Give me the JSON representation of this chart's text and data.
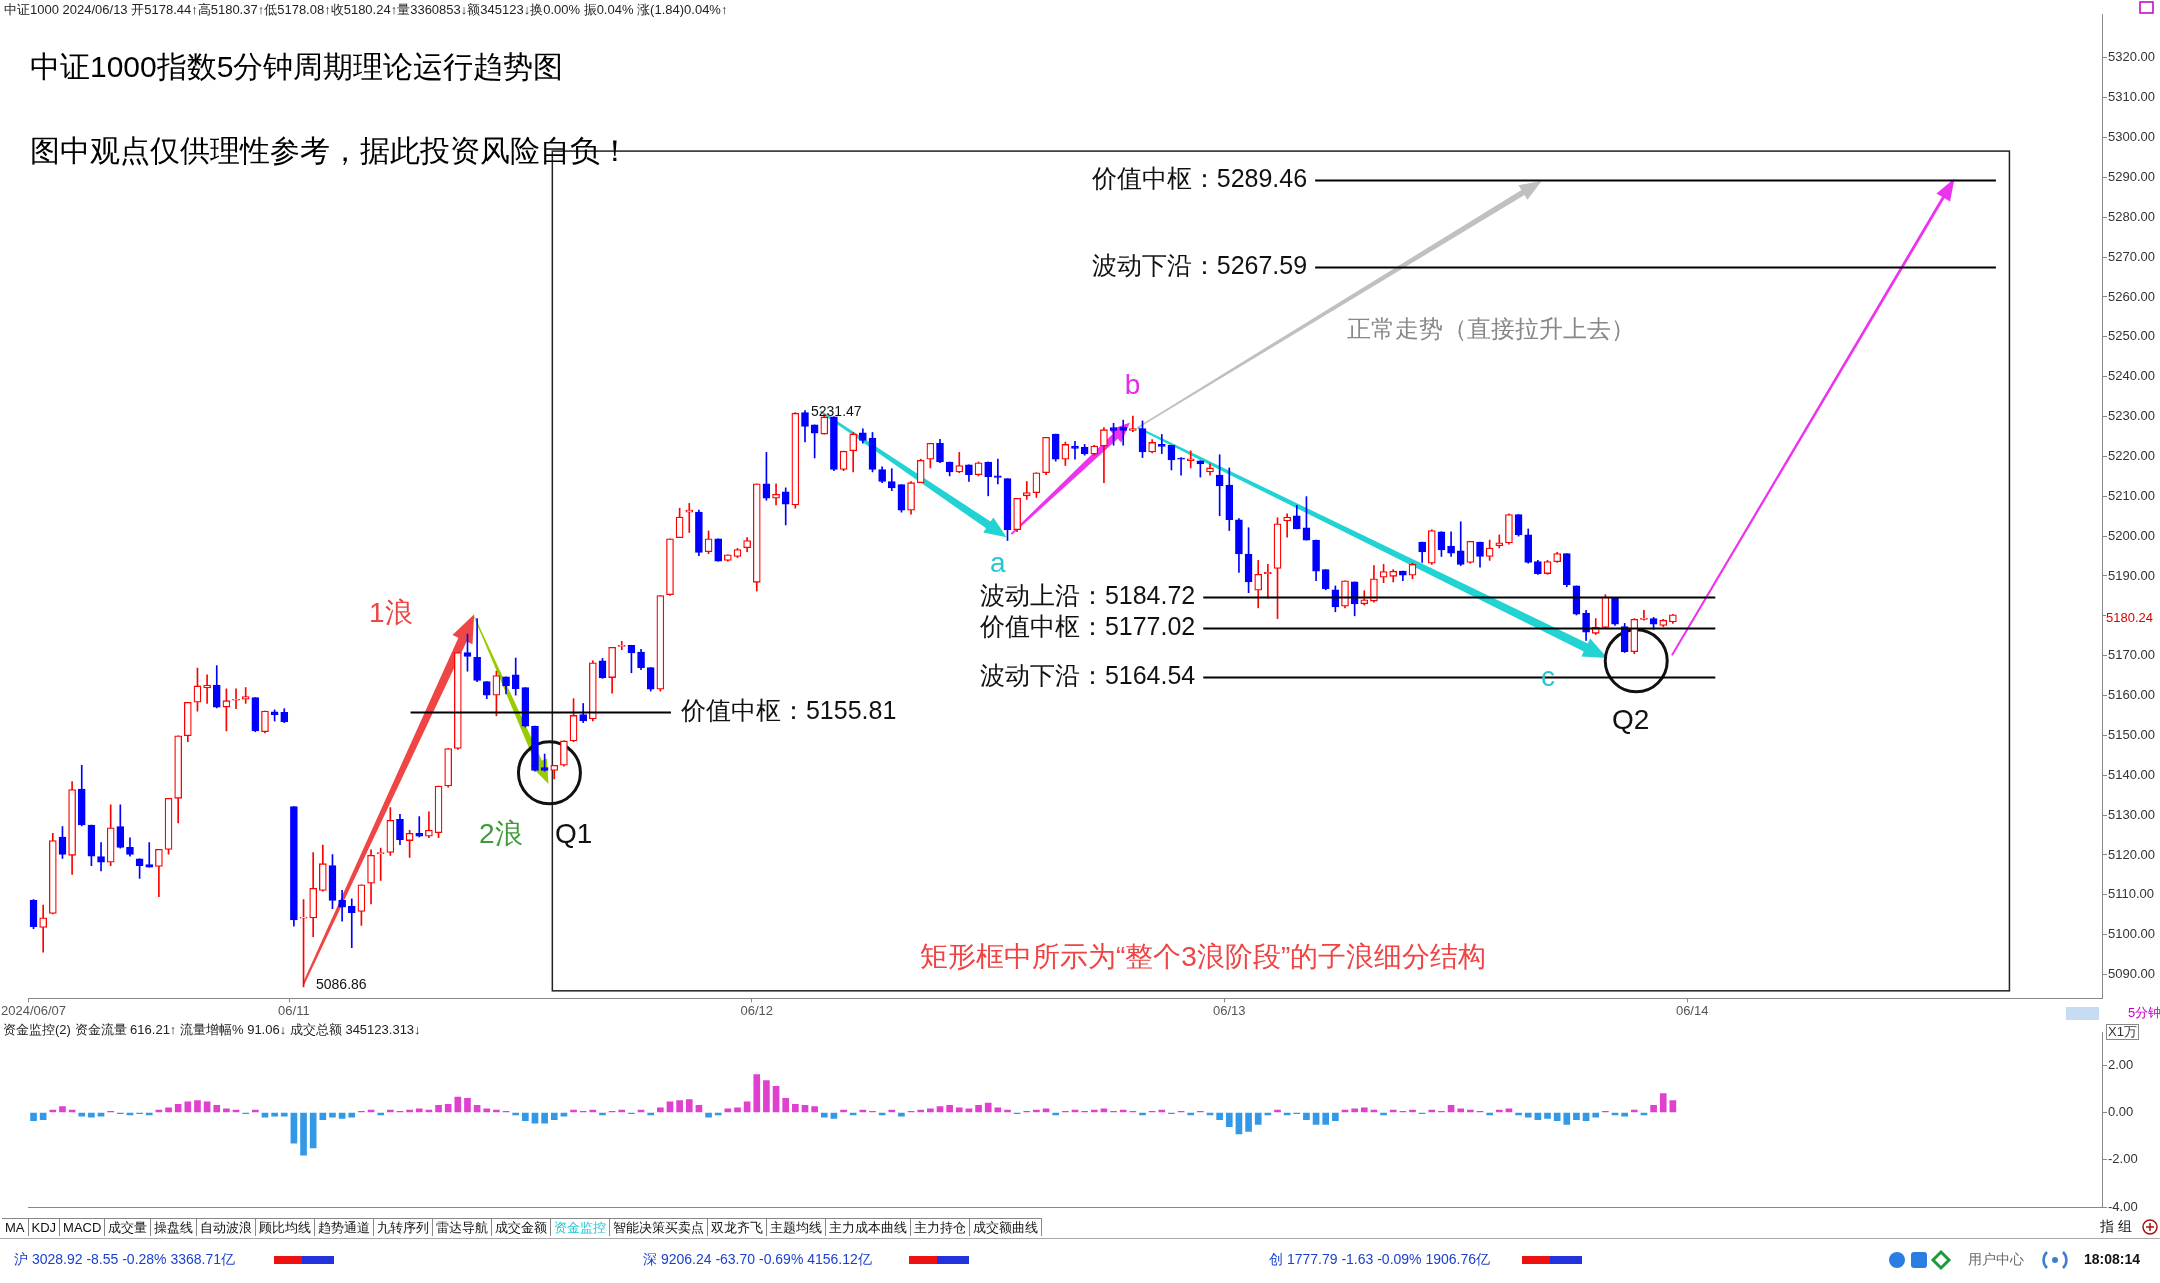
{
  "chart_data": [
    {
      "type": "candlestick",
      "title": "中证1000指数5分钟周期理论运行趋势图",
      "subtitle": "图中观点仅供理性参考，据此投资风险自负！",
      "categories": [
        "2024/06/07",
        null,
        null,
        null,
        null,
        null,
        null,
        null,
        null,
        null,
        null,
        null,
        null,
        null,
        null,
        null,
        null,
        null,
        null,
        null,
        null,
        null,
        null,
        null,
        null,
        null,
        null,
        "06/11",
        null,
        null,
        null,
        null,
        null,
        null,
        null,
        null,
        null,
        null,
        null,
        null,
        null,
        null,
        null,
        null,
        null,
        null,
        null,
        null,
        null,
        null,
        null,
        null,
        null,
        null,
        null,
        null,
        null,
        null,
        null,
        null,
        null,
        null,
        null,
        null,
        null,
        null,
        null,
        null,
        null,
        null,
        null,
        null,
        null,
        null,
        null,
        "06/12",
        null,
        null,
        null,
        null,
        null,
        null,
        null,
        null,
        null,
        null,
        null,
        null,
        null,
        null,
        null,
        null,
        null,
        null,
        null,
        null,
        null,
        null,
        null,
        null,
        null,
        null,
        null,
        null,
        null,
        null,
        null,
        null,
        null,
        null,
        null,
        null,
        null,
        null,
        null,
        null,
        null,
        null,
        null,
        null,
        null,
        null,
        null,
        null,
        "06/13",
        null,
        null,
        null,
        null,
        null,
        null,
        null,
        null,
        null,
        null,
        null,
        null,
        null,
        null,
        null,
        null,
        null,
        null,
        null,
        null,
        null,
        null,
        null,
        null,
        null,
        null,
        null,
        null,
        null,
        null,
        null,
        null,
        null,
        null,
        null,
        null,
        null,
        null,
        null,
        null,
        null,
        null,
        null,
        null,
        null,
        null,
        null,
        "06/14",
        null,
        null,
        null,
        null,
        null,
        null,
        null,
        null,
        null,
        null,
        null,
        null,
        null,
        null,
        null,
        null,
        null,
        null,
        null,
        null,
        null,
        null,
        null,
        null,
        null,
        null,
        null,
        null,
        null,
        null,
        null,
        null,
        null,
        null,
        null,
        null,
        null,
        null,
        null,
        null,
        null,
        null
      ],
      "ohlc": [
        [
          5108.6,
          5108.8,
          5101.5,
          5102.0
        ],
        [
          5101.8,
          5107.4,
          5095.6,
          5104.2
        ],
        [
          5105.3,
          5125.4,
          5105.2,
          5123.6
        ],
        [
          5124.5,
          5127.1,
          5119.1,
          5120.1
        ],
        [
          5119.9,
          5138.4,
          5115.1,
          5136.4
        ],
        [
          5136.5,
          5142.5,
          5127.3,
          5127.5
        ],
        [
          5127.5,
          5127.5,
          5117.3,
          5119.7
        ],
        [
          5119.6,
          5123.1,
          5116.0,
          5118.2
        ],
        [
          5118.2,
          5132.6,
          5117.3,
          5126.8
        ],
        [
          5127.1,
          5132.6,
          5121.7,
          5121.9
        ],
        [
          5121.9,
          5124.3,
          5119.7,
          5120.1
        ],
        [
          5119.0,
          5119.0,
          5114.1,
          5117.3
        ],
        [
          5117.6,
          5123.1,
          5116.9,
          5116.9
        ],
        [
          5117.1,
          5121.4,
          5109.5,
          5121.4
        ],
        [
          5121.4,
          5134.2,
          5120.2,
          5134.2
        ],
        [
          5134.2,
          5149.9,
          5128.0,
          5149.9
        ],
        [
          5149.9,
          5158.3,
          5148.4,
          5158.3
        ],
        [
          5158.3,
          5166.9,
          5156.1,
          5162.4
        ],
        [
          5161.9,
          5165.2,
          5158.0,
          5162.6
        ],
        [
          5162.6,
          5167.5,
          5156.9,
          5157.1
        ],
        [
          5157.1,
          5161.7,
          5151.1,
          5158.7
        ],
        [
          5158.8,
          5161.7,
          5156.7,
          5159.0
        ],
        [
          5159.1,
          5162.0,
          5158.0,
          5159.7
        ],
        [
          5159.5,
          5159.5,
          5150.9,
          5151.1
        ],
        [
          5150.9,
          5156.1,
          5150.6,
          5156.1
        ],
        [
          5155.9,
          5156.4,
          5153.6,
          5155.2
        ],
        [
          5155.8,
          5156.7,
          5153.2,
          5153.4
        ],
        [
          5132.1,
          5132.1,
          5102.1,
          5103.7
        ],
        [
          5104.1,
          5108.8,
          5086.86,
          5104.4
        ],
        [
          5104.2,
          5120.6,
          5099.5,
          5111.6
        ],
        [
          5111.1,
          5122.5,
          5110.9,
          5117.8
        ],
        [
          5117.3,
          5120.1,
          5106.5,
          5108.6
        ],
        [
          5108.6,
          5111.1,
          5103.4,
          5106.9
        ],
        [
          5107.1,
          5109.0,
          5096.7,
          5105.5
        ],
        [
          5105.8,
          5112.5,
          5102.3,
          5112.5
        ],
        [
          5112.9,
          5121.3,
          5107.7,
          5119.9
        ],
        [
          5120.3,
          5121.7,
          5113.6,
          5120.6
        ],
        [
          5120.6,
          5131.9,
          5119.9,
          5128.7
        ],
        [
          5128.9,
          5130.2,
          5122.6,
          5123.8
        ],
        [
          5123.6,
          5126.2,
          5119.4,
          5125.4
        ],
        [
          5125.4,
          5129.6,
          5124.5,
          5124.7
        ],
        [
          5124.7,
          5130.8,
          5124.3,
          5126.2
        ],
        [
          5125.6,
          5137.3,
          5124.3,
          5137.3
        ],
        [
          5137.3,
          5146.7,
          5137.0,
          5146.7
        ],
        [
          5146.7,
          5170.8,
          5146.5,
          5170.8
        ],
        [
          5170.8,
          5175.4,
          5166.1,
          5169.8
        ],
        [
          5169.6,
          5179.3,
          5163.5,
          5163.8
        ],
        [
          5163.5,
          5163.5,
          5159.2,
          5160.1
        ],
        [
          5160.1,
          5166.1,
          5154.9,
          5165.0
        ],
        [
          5164.7,
          5164.7,
          5160.4,
          5162.4
        ],
        [
          5165.2,
          5169.4,
          5160.1,
          5161.7
        ],
        [
          5162.0,
          5162.0,
          5152.1,
          5152.3
        ],
        [
          5152.3,
          5152.3,
          5141.0,
          5141.2
        ],
        [
          5141.9,
          5145.3,
          5141.0,
          5141.2
        ],
        [
          5141.2,
          5142.5,
          5139.1,
          5142.5
        ],
        [
          5142.5,
          5148.6,
          5142.3,
          5148.6
        ],
        [
          5148.6,
          5159.2,
          5148.4,
          5155.0
        ],
        [
          5155.2,
          5158.0,
          5153.2,
          5153.6
        ],
        [
          5154.1,
          5168.7,
          5153.6,
          5168.2
        ],
        [
          5168.7,
          5169.3,
          5164.3,
          5164.5
        ],
        [
          5164.5,
          5172.1,
          5160.6,
          5172.1
        ],
        [
          5172.3,
          5173.6,
          5171.5,
          5172.6
        ],
        [
          5172.6,
          5172.6,
          5165.7,
          5170.7
        ],
        [
          5170.9,
          5171.6,
          5166.5,
          5167.0
        ],
        [
          5167.0,
          5167.0,
          5161.1,
          5161.6
        ],
        [
          5161.6,
          5185.1,
          5161.1,
          5185.1
        ],
        [
          5185.3,
          5199.3,
          5185.1,
          5199.3
        ],
        [
          5199.6,
          5207.0,
          5199.6,
          5204.8
        ],
        [
          5206.0,
          5208.2,
          5200.9,
          5206.5
        ],
        [
          5206.0,
          5206.5,
          5195.1,
          5195.9
        ],
        [
          5196.1,
          5201.3,
          5195.6,
          5199.3
        ],
        [
          5199.3,
          5199.3,
          5193.7,
          5193.7
        ],
        [
          5193.9,
          5195.3,
          5193.7,
          5195.3
        ],
        [
          5194.9,
          5196.9,
          5194.6,
          5196.6
        ],
        [
          5197.1,
          5199.6,
          5196.1,
          5198.9
        ],
        [
          5188.4,
          5213.1,
          5186.2,
          5213.1
        ],
        [
          5213.1,
          5221.0,
          5209.0,
          5209.5
        ],
        [
          5209.5,
          5213.1,
          5207.8,
          5210.5
        ],
        [
          5211.1,
          5212.1,
          5202.8,
          5208.0
        ],
        [
          5207.8,
          5231.0,
          5207.0,
          5230.8
        ],
        [
          5231.0,
          5231.47,
          5223.6,
          5227.5
        ],
        [
          5227.9,
          5227.9,
          5219.6,
          5225.8
        ],
        [
          5225.6,
          5230.5,
          5225.6,
          5229.9
        ],
        [
          5229.9,
          5229.9,
          5216.4,
          5216.7
        ],
        [
          5216.7,
          5221.3,
          5216.4,
          5221.3
        ],
        [
          5221.4,
          5226.0,
          5216.1,
          5225.6
        ],
        [
          5225.9,
          5226.9,
          5223.3,
          5224.0
        ],
        [
          5224.6,
          5226.0,
          5216.1,
          5216.7
        ],
        [
          5216.7,
          5217.4,
          5213.4,
          5213.7
        ],
        [
          5213.7,
          5216.9,
          5211.4,
          5212.1
        ],
        [
          5212.9,
          5212.9,
          5206.0,
          5206.5
        ],
        [
          5206.5,
          5213.7,
          5205.5,
          5213.4
        ],
        [
          5213.4,
          5219.3,
          5213.4,
          5219.0
        ],
        [
          5219.3,
          5223.3,
          5217.1,
          5223.3
        ],
        [
          5223.3,
          5224.3,
          5218.4,
          5218.6
        ],
        [
          5218.6,
          5218.6,
          5215.1,
          5216.1
        ],
        [
          5216.1,
          5221.0,
          5215.9,
          5217.7
        ],
        [
          5217.9,
          5217.9,
          5213.7,
          5215.4
        ],
        [
          5215.4,
          5218.6,
          5215.1,
          5218.4
        ],
        [
          5218.6,
          5218.6,
          5210.1,
          5214.9
        ],
        [
          5215.1,
          5219.3,
          5213.1,
          5214.7
        ],
        [
          5214.4,
          5214.4,
          5198.9,
          5201.6
        ],
        [
          5201.6,
          5209.5,
          5201.1,
          5209.5
        ],
        [
          5210.1,
          5213.7,
          5209.2,
          5210.9
        ],
        [
          5210.9,
          5215.9,
          5209.7,
          5215.9
        ],
        [
          5215.9,
          5224.8,
          5215.4,
          5224.8
        ],
        [
          5225.6,
          5225.6,
          5218.8,
          5219.3
        ],
        [
          5219.3,
          5223.6,
          5217.7,
          5223.0
        ],
        [
          5222.6,
          5223.8,
          5219.3,
          5222.0
        ],
        [
          5222.3,
          5223.0,
          5220.3,
          5220.6
        ],
        [
          5220.6,
          5222.8,
          5220.3,
          5222.6
        ],
        [
          5222.6,
          5227.2,
          5213.4,
          5226.7
        ],
        [
          5227.2,
          5228.3,
          5222.8,
          5226.5
        ],
        [
          5227.3,
          5229.1,
          5222.8,
          5226.5
        ],
        [
          5226.5,
          5230.1,
          5226.2,
          5227.0
        ],
        [
          5227.0,
          5228.9,
          5219.7,
          5221.1
        ],
        [
          5221.1,
          5224.2,
          5220.9,
          5223.5
        ],
        [
          5223.0,
          5225.5,
          5220.7,
          5222.5
        ],
        [
          5222.8,
          5222.8,
          5216.6,
          5219.1
        ],
        [
          5219.6,
          5219.7,
          5215.3,
          5219.3
        ],
        [
          5218.9,
          5221.4,
          5217.1,
          5219.4
        ],
        [
          5218.9,
          5218.9,
          5214.8,
          5218.1
        ],
        [
          5216.1,
          5218.1,
          5215.3,
          5217.1
        ],
        [
          5215.3,
          5220.4,
          5205.1,
          5212.6
        ],
        [
          5212.8,
          5217.1,
          5201.4,
          5204.1
        ],
        [
          5204.1,
          5204.4,
          5190.9,
          5195.5
        ],
        [
          5195.5,
          5202.1,
          5185.8,
          5188.5
        ],
        [
          5186.4,
          5193.9,
          5182.0,
          5190.4
        ],
        [
          5190.6,
          5192.9,
          5184.4,
          5190.9
        ],
        [
          5191.9,
          5204.6,
          5179.3,
          5203.1
        ],
        [
          5203.8,
          5205.6,
          5199.7,
          5204.8
        ],
        [
          5205.1,
          5207.7,
          5201.8,
          5201.8
        ],
        [
          5202.1,
          5209.9,
          5199.0,
          5199.0
        ],
        [
          5199.0,
          5199.0,
          5188.8,
          5191.2
        ],
        [
          5191.6,
          5191.6,
          5186.5,
          5186.8
        ],
        [
          5186.5,
          5187.5,
          5181.0,
          5182.2
        ],
        [
          5182.4,
          5188.8,
          5182.0,
          5188.8
        ],
        [
          5188.5,
          5188.5,
          5180.0,
          5183.0
        ],
        [
          5183.0,
          5186.3,
          5182.7,
          5184.0
        ],
        [
          5183.7,
          5192.6,
          5183.4,
          5189.3
        ],
        [
          5189.7,
          5192.9,
          5188.3,
          5191.1
        ],
        [
          5189.9,
          5191.6,
          5188.5,
          5191.2
        ],
        [
          5191.2,
          5191.2,
          5188.8,
          5190.2
        ],
        [
          5190.2,
          5193.2,
          5189.3,
          5192.9
        ],
        [
          5198.5,
          5198.5,
          5193.4,
          5196.0
        ],
        [
          5193.2,
          5201.6,
          5192.9,
          5201.4
        ],
        [
          5201.1,
          5201.1,
          5194.9,
          5196.5
        ],
        [
          5197.5,
          5201.1,
          5194.9,
          5195.7
        ],
        [
          5196.3,
          5203.6,
          5192.6,
          5192.9
        ],
        [
          5193.4,
          5198.7,
          5193.2,
          5198.7
        ],
        [
          5198.5,
          5198.5,
          5192.2,
          5194.9
        ],
        [
          5194.9,
          5199.0,
          5193.9,
          5197.0
        ],
        [
          5197.6,
          5200.3,
          5197.0,
          5198.3
        ],
        [
          5198.3,
          5205.6,
          5198.0,
          5205.4
        ],
        [
          5205.4,
          5205.4,
          5200.0,
          5200.3
        ],
        [
          5200.3,
          5201.8,
          5193.2,
          5193.4
        ],
        [
          5193.6,
          5193.9,
          5190.4,
          5190.6
        ],
        [
          5190.6,
          5193.9,
          5190.4,
          5193.6
        ],
        [
          5193.6,
          5195.9,
          5193.4,
          5195.6
        ],
        [
          5195.6,
          5195.6,
          5187.3,
          5187.8
        ],
        [
          5187.5,
          5187.5,
          5180.2,
          5180.4
        ],
        [
          5180.7,
          5181.4,
          5173.8,
          5175.9
        ],
        [
          5175.6,
          5179.3,
          5175.3,
          5177.1
        ],
        [
          5177.1,
          5185.3,
          5176.9,
          5184.7
        ],
        [
          5184.4,
          5184.4,
          5177.6,
          5177.9
        ],
        [
          5177.3,
          5178.1,
          5170.8,
          5171.0
        ],
        [
          5171.0,
          5179.3,
          5170.5,
          5179.1
        ],
        [
          5179.1,
          5181.4,
          5178.9,
          5179.4
        ],
        [
          5179.3,
          5179.6,
          5176.6,
          5177.9
        ],
        [
          5177.6,
          5179.1,
          5177.3,
          5178.9
        ],
        [
          5178.44,
          5180.37,
          5178.08,
          5180.24
        ],
        null,
        null,
        null,
        null,
        null,
        null,
        null,
        null,
        null,
        null,
        null,
        null,
        null,
        null,
        null,
        null,
        null,
        null,
        null,
        null,
        null,
        null,
        null,
        null,
        null,
        null,
        null,
        null,
        null,
        null,
        null,
        null,
        null,
        null,
        null,
        null,
        null,
        null,
        null,
        null,
        null,
        null,
        null,
        null
      ],
      "colors": [
        "#0000ff",
        "#ff0000",
        "#ff0000",
        "#0000ff",
        "#ff0000",
        "#0000ff",
        "#0000ff",
        "#0000ff",
        "#ff0000",
        "#0000ff",
        "#0000ff",
        "#0000ff",
        "#0000ff",
        "#ff0000",
        "#ff0000",
        "#ff0000",
        "#ff0000",
        "#ff0000",
        "#ff0000",
        "#0000ff",
        "#ff0000",
        "#ff0000",
        "#ff0000",
        "#0000ff",
        "#ff0000",
        "#0000ff",
        "#0000ff",
        "#0000ff",
        "#ff0000",
        "#ff0000",
        "#ff0000",
        "#0000ff",
        "#0000ff",
        "#0000ff",
        "#ff0000",
        "#ff0000",
        "#ff0000",
        "#ff0000",
        "#0000ff",
        "#ff0000",
        "#0000ff",
        "#ff0000",
        "#ff0000",
        "#ff0000",
        "#ff0000",
        "#0000ff",
        "#0000ff",
        "#0000ff",
        "#ff0000",
        "#0000ff",
        "#0000ff",
        "#0000ff",
        "#0000ff",
        "#0000ff",
        "#ff0000",
        "#ff0000",
        "#ff0000",
        "#0000ff",
        "#ff0000",
        "#0000ff",
        "#ff0000",
        "#ff0000",
        "#0000ff",
        "#0000ff",
        "#0000ff",
        "#ff0000",
        "#ff0000",
        "#ff0000",
        "#ff0000",
        "#0000ff",
        "#ff0000",
        "#0000ff",
        "#ff0000",
        "#ff0000",
        "#ff0000",
        "#ff0000",
        "#0000ff",
        "#ff0000",
        "#0000ff",
        "#ff0000",
        "#0000ff",
        "#0000ff",
        "#ff0000",
        "#0000ff",
        "#ff0000",
        "#ff0000",
        "#0000ff",
        "#0000ff",
        "#0000ff",
        "#0000ff",
        "#0000ff",
        "#ff0000",
        "#ff0000",
        "#ff0000",
        "#0000ff",
        "#0000ff",
        "#ff0000",
        "#0000ff",
        "#ff0000",
        "#0000ff",
        "#0000ff",
        "#0000ff",
        "#ff0000",
        "#ff0000",
        "#ff0000",
        "#ff0000",
        "#0000ff",
        "#ff0000",
        "#0000ff",
        "#0000ff",
        "#ff0000",
        "#ff0000",
        "#0000ff",
        "#0000ff",
        "#ff0000",
        "#0000ff",
        "#ff0000",
        "#0000ff",
        "#0000ff",
        "#0000ff",
        "#ff0000",
        "#0000ff",
        "#ff0000",
        "#0000ff",
        "#0000ff",
        "#0000ff",
        "#0000ff",
        "#ff0000",
        "#ff0000",
        "#ff0000",
        "#ff0000",
        "#0000ff",
        "#0000ff",
        "#0000ff",
        "#0000ff",
        "#0000ff",
        "#ff0000",
        "#0000ff",
        "#ff0000",
        "#ff0000",
        "#ff0000",
        "#ff0000",
        "#0000ff",
        "#ff0000",
        "#0000ff",
        "#ff0000",
        "#0000ff",
        "#0000ff",
        "#0000ff",
        "#ff0000",
        "#0000ff",
        "#ff0000",
        "#ff0000",
        "#ff0000",
        "#0000ff",
        "#0000ff",
        "#0000ff",
        "#ff0000",
        "#ff0000",
        "#0000ff",
        "#0000ff",
        "#0000ff",
        "#ff0000",
        "#ff0000",
        "#0000ff",
        "#0000ff",
        "#ff0000",
        "#ff0000",
        "#0000ff",
        "#ff0000",
        "#ff0000",
        null,
        null,
        null,
        null,
        null,
        null,
        null,
        null,
        null,
        null,
        null,
        null,
        null,
        null,
        null,
        null,
        null,
        null,
        null,
        null,
        null,
        null,
        null,
        null,
        null,
        null,
        null,
        null,
        null,
        null,
        null,
        null,
        null,
        null,
        null,
        null,
        null,
        null,
        null,
        null,
        null,
        null,
        null,
        null
      ],
      "ylim": [
        5084,
        5331
      ],
      "yticks": [
        {
          "value": 5090,
          "label": "5090.00"
        },
        {
          "value": 5100,
          "label": "5100.00"
        },
        {
          "value": 5110,
          "label": "5110.00"
        },
        {
          "value": 5120,
          "label": "5120.00"
        },
        {
          "value": 5130,
          "label": "5130.00"
        },
        {
          "value": 5140,
          "label": "5140.00"
        },
        {
          "value": 5150,
          "label": "5150.00"
        },
        {
          "value": 5160,
          "label": "5160.00"
        },
        {
          "value": 5170,
          "label": "5170.00"
        },
        {
          "value": 5180,
          "label": null
        },
        {
          "value": 5190,
          "label": "5190.00"
        },
        {
          "value": 5200,
          "label": "5200.00"
        },
        {
          "value": 5210,
          "label": "5210.00"
        },
        {
          "value": 5220,
          "label": "5220.00"
        },
        {
          "value": 5230,
          "label": "5230.00"
        },
        {
          "value": 5240,
          "label": "5240.00"
        },
        {
          "value": 5250,
          "label": "5250.00"
        },
        {
          "value": 5260,
          "label": "5260.00"
        },
        {
          "value": 5270,
          "label": "5270.00"
        },
        {
          "value": 5280,
          "label": "5280.00"
        },
        {
          "value": 5290,
          "label": "5290.00"
        },
        {
          "value": 5300,
          "label": "5300.00"
        },
        {
          "value": 5310,
          "label": "5310.00"
        },
        {
          "value": 5320,
          "label": "5320.00"
        }
      ],
      "ref_lines": [
        {
          "axis": "y",
          "value": 5155.81,
          "label": "价值中枢：5155.81",
          "color": "#000000"
        },
        {
          "axis": "y",
          "value": 5184.72,
          "label": "波动上沿：5184.72",
          "color": "#000000"
        },
        {
          "axis": "y",
          "value": 5177.02,
          "label": "价值中枢：5177.02",
          "color": "#000000"
        },
        {
          "axis": "y",
          "value": 5164.54,
          "label": "波动下沿：5164.54",
          "color": "#000000"
        },
        {
          "axis": "y",
          "value": 5289.46,
          "label": "价值中枢：5289.46",
          "color": "#000000"
        },
        {
          "axis": "y",
          "value": 5267.59,
          "label": "波动下沿：5267.59",
          "color": "#000000"
        }
      ],
      "annotations": [
        "中证1000 2024/06/13 开5178.44↑高5180.37↑低5178.08↑收5180.24↑量3360853↓额345123↓换0.00% 振0.04% 涨(1.84)0.04%↑",
        "1浪",
        "2浪",
        "Q1",
        "a",
        {
          "text": "b",
          "y": 5230.1
        },
        "c",
        "Q2",
        "正常走势（直接拉升上去）",
        "矩形框中所示为“整个3浪阶段”的子浪细分结构",
        "5086.86",
        "5231.47",
        "5180.24",
        "5分钟"
      ]
    },
    {
      "type": "bar",
      "title": "资金监控(2)  资金流量 616.21↑  流量增幅% 91.06↓  成交总额 345123.313↓",
      "ylabel": "X1万",
      "tick_labels": "y",
      "categories": [
        null,
        null,
        null,
        null,
        null,
        null,
        null,
        null,
        null,
        null,
        null,
        null,
        null,
        null,
        null,
        null,
        null,
        null,
        null,
        null,
        null,
        null,
        null,
        null,
        null,
        null,
        null,
        null,
        null,
        null,
        null,
        null,
        null,
        null,
        null,
        null,
        null,
        null,
        null,
        null,
        null,
        null,
        null,
        null,
        null,
        null,
        null,
        null,
        null,
        null,
        null,
        null,
        null,
        null,
        null,
        null,
        null,
        null,
        null,
        null,
        null,
        null,
        null,
        null,
        null,
        null,
        null,
        null,
        null,
        null,
        null,
        null,
        null,
        null,
        null,
        null,
        null,
        null,
        null,
        null,
        null,
        null,
        null,
        null,
        null,
        null,
        null,
        null,
        null,
        null,
        null,
        null,
        null,
        null,
        null,
        null,
        null,
        null,
        null,
        null,
        null,
        null,
        null,
        null,
        null,
        null,
        null,
        null,
        null,
        null,
        null,
        null,
        null,
        null,
        null,
        null,
        null,
        null,
        null,
        null,
        null,
        null,
        null,
        null,
        null,
        null,
        null,
        null,
        null,
        null,
        null,
        null,
        null,
        null,
        null,
        null,
        null,
        null,
        null,
        null,
        null,
        null,
        null,
        null,
        null,
        null,
        null,
        null,
        null,
        null,
        null,
        null,
        null,
        null,
        null,
        null,
        null,
        null,
        null,
        null,
        null,
        null,
        null,
        null,
        null,
        null,
        null,
        null,
        null,
        null,
        null,
        null,
        null,
        null,
        null,
        null,
        null,
        null,
        null,
        null,
        null,
        null,
        null,
        null,
        null,
        null,
        null,
        null,
        null,
        null,
        null,
        null,
        null,
        null,
        null,
        null,
        null,
        null,
        null,
        null,
        null,
        null,
        null,
        null,
        null,
        null,
        null,
        null,
        null,
        null,
        null,
        null,
        null,
        null,
        null
      ],
      "values": [
        -0.35,
        -0.3,
        0.1,
        0.25,
        0.1,
        -0.15,
        -0.2,
        -0.15,
        0.05,
        -0.05,
        -0.1,
        -0.05,
        -0.1,
        0.1,
        0.2,
        0.35,
        0.45,
        0.5,
        0.45,
        0.3,
        0.15,
        0.1,
        -0.05,
        0.1,
        -0.2,
        -0.15,
        -0.15,
        -1.3,
        -1.8,
        -1.5,
        -0.3,
        -0.2,
        -0.25,
        -0.2,
        0.05,
        0.1,
        -0.1,
        0.1,
        0.05,
        0.1,
        0.15,
        0.1,
        0.3,
        0.35,
        0.65,
        0.6,
        0.3,
        0.15,
        0.1,
        0.05,
        -0.1,
        -0.35,
        -0.45,
        -0.45,
        -0.3,
        -0.15,
        0.1,
        0.05,
        0.1,
        -0.1,
        0.05,
        0.1,
        -0.05,
        0.1,
        -0.1,
        0.2,
        0.45,
        0.5,
        0.55,
        0.3,
        -0.2,
        -0.1,
        0.15,
        0.2,
        0.45,
        1.6,
        1.35,
        1.1,
        0.6,
        0.35,
        0.3,
        0.25,
        -0.2,
        -0.25,
        0.1,
        -0.1,
        0.1,
        0.05,
        -0.1,
        0.1,
        -0.15,
        0.05,
        0.1,
        0.15,
        0.25,
        0.3,
        0.2,
        0.15,
        0.3,
        0.4,
        0.2,
        0.1,
        -0.05,
        0.05,
        0.1,
        0.15,
        -0.1,
        0.05,
        0.1,
        0.05,
        0.1,
        0.15,
        0.05,
        0.1,
        0.05,
        -0.1,
        0.05,
        0.1,
        -0.05,
        0.05,
        -0.1,
        0.05,
        -0.1,
        -0.3,
        -0.6,
        -0.9,
        -0.8,
        -0.5,
        -0.1,
        0.1,
        -0.1,
        -0.05,
        -0.3,
        -0.5,
        -0.5,
        -0.35,
        0.1,
        0.15,
        0.2,
        0.1,
        -0.1,
        0.1,
        0.05,
        0.1,
        -0.05,
        0.1,
        0.05,
        0.3,
        0.15,
        0.1,
        0.05,
        -0.1,
        0.1,
        0.15,
        -0.1,
        -0.2,
        -0.3,
        -0.25,
        -0.35,
        -0.5,
        -0.3,
        -0.35,
        -0.2,
        0.05,
        -0.1,
        -0.15,
        0.1,
        -0.1,
        0.3,
        0.8,
        0.5,
        null,
        null,
        null,
        null,
        null,
        null,
        null,
        null,
        null,
        null,
        null,
        null,
        null,
        null,
        null,
        null,
        null,
        null,
        null,
        null,
        null,
        null,
        null,
        null,
        null,
        null,
        null,
        null,
        null,
        null,
        null,
        null,
        null,
        null,
        null,
        null,
        null,
        null,
        null,
        null,
        null,
        null,
        null,
        null
      ],
      "colors": [
        "#3399e6",
        "#3399e6",
        "#e040d0",
        "#e040d0",
        "#e040d0",
        "#3399e6",
        "#3399e6",
        "#3399e6",
        "#e040d0",
        "#3399e6",
        "#3399e6",
        "#3399e6",
        "#3399e6",
        "#e040d0",
        "#e040d0",
        "#e040d0",
        "#e040d0",
        "#e040d0",
        "#e040d0",
        "#e040d0",
        "#e040d0",
        "#e040d0",
        "#3399e6",
        "#e040d0",
        "#3399e6",
        "#3399e6",
        "#3399e6",
        "#3399e6",
        "#3399e6",
        "#3399e6",
        "#3399e6",
        "#3399e6",
        "#3399e6",
        "#3399e6",
        "#e040d0",
        "#e040d0",
        "#3399e6",
        "#e040d0",
        "#e040d0",
        "#e040d0",
        "#e040d0",
        "#e040d0",
        "#e040d0",
        "#e040d0",
        "#e040d0",
        "#e040d0",
        "#e040d0",
        "#e040d0",
        "#e040d0",
        "#e040d0",
        "#3399e6",
        "#3399e6",
        "#3399e6",
        "#3399e6",
        "#3399e6",
        "#3399e6",
        "#e040d0",
        "#e040d0",
        "#e040d0",
        "#3399e6",
        "#e040d0",
        "#e040d0",
        "#3399e6",
        "#e040d0",
        "#3399e6",
        "#e040d0",
        "#e040d0",
        "#e040d0",
        "#e040d0",
        "#e040d0",
        "#3399e6",
        "#3399e6",
        "#e040d0",
        "#e040d0",
        "#e040d0",
        "#e040d0",
        "#e040d0",
        "#e040d0",
        "#e040d0",
        "#e040d0",
        "#e040d0",
        "#e040d0",
        "#3399e6",
        "#3399e6",
        "#e040d0",
        "#3399e6",
        "#e040d0",
        "#e040d0",
        "#3399e6",
        "#e040d0",
        "#3399e6",
        "#e040d0",
        "#e040d0",
        "#e040d0",
        "#e040d0",
        "#e040d0",
        "#e040d0",
        "#e040d0",
        "#e040d0",
        "#e040d0",
        "#e040d0",
        "#e040d0",
        "#3399e6",
        "#e040d0",
        "#e040d0",
        "#e040d0",
        "#3399e6",
        "#e040d0",
        "#e040d0",
        "#e040d0",
        "#e040d0",
        "#e040d0",
        "#e040d0",
        "#e040d0",
        "#e040d0",
        "#3399e6",
        "#e040d0",
        "#e040d0",
        "#3399e6",
        "#e040d0",
        "#3399e6",
        "#e040d0",
        "#3399e6",
        "#3399e6",
        "#3399e6",
        "#3399e6",
        "#3399e6",
        "#3399e6",
        "#3399e6",
        "#e040d0",
        "#3399e6",
        "#3399e6",
        "#3399e6",
        "#3399e6",
        "#3399e6",
        "#3399e6",
        "#e040d0",
        "#e040d0",
        "#e040d0",
        "#e040d0",
        "#3399e6",
        "#e040d0",
        "#e040d0",
        "#e040d0",
        "#3399e6",
        "#e040d0",
        "#e040d0",
        "#e040d0",
        "#e040d0",
        "#e040d0",
        "#e040d0",
        "#3399e6",
        "#e040d0",
        "#e040d0",
        "#3399e6",
        "#3399e6",
        "#3399e6",
        "#3399e6",
        "#3399e6",
        "#3399e6",
        "#3399e6",
        "#3399e6",
        "#3399e6",
        "#e040d0",
        "#3399e6",
        "#3399e6",
        "#e040d0",
        "#3399e6",
        "#e040d0",
        "#e040d0",
        "#e040d0",
        null,
        null,
        null,
        null,
        null,
        null,
        null,
        null,
        null,
        null,
        null,
        null,
        null,
        null,
        null,
        null,
        null,
        null,
        null,
        null,
        null,
        null,
        null,
        null,
        null,
        null,
        null,
        null,
        null,
        null,
        null,
        null,
        null,
        null,
        null,
        null,
        null,
        null,
        null,
        null,
        null,
        null,
        null,
        null
      ],
      "ylim": [
        -4,
        3.4
      ],
      "yticks": [
        {
          "value": 2,
          "label": "2.00"
        },
        {
          "value": 0,
          "label": "0.00"
        },
        {
          "value": -2,
          "label": "-2.00"
        },
        {
          "value": -4,
          "label": "-4.00"
        }
      ],
      "annotations": [
        "MA",
        "KDJ",
        "MACD",
        "成交量",
        "操盘线",
        "自动波浪",
        "顾比均线",
        "趋势通道",
        "九转序列",
        "雷达导航",
        "成交金额",
        "资金监控",
        "智能决策买卖点",
        "双龙齐飞",
        "主题均线",
        "主力成本曲线",
        "主力持仓",
        "成交额曲线",
        "沪 3028.92 -8.55 -0.28% 3368.71亿",
        "深 9206.24 -63.70 -0.69% 4156.12亿",
        "创 1777.79 -1.63 -0.09% 1906.76亿",
        "用户中心",
        "18:08:14",
        "指 组"
      ]
    }
  ]
}
